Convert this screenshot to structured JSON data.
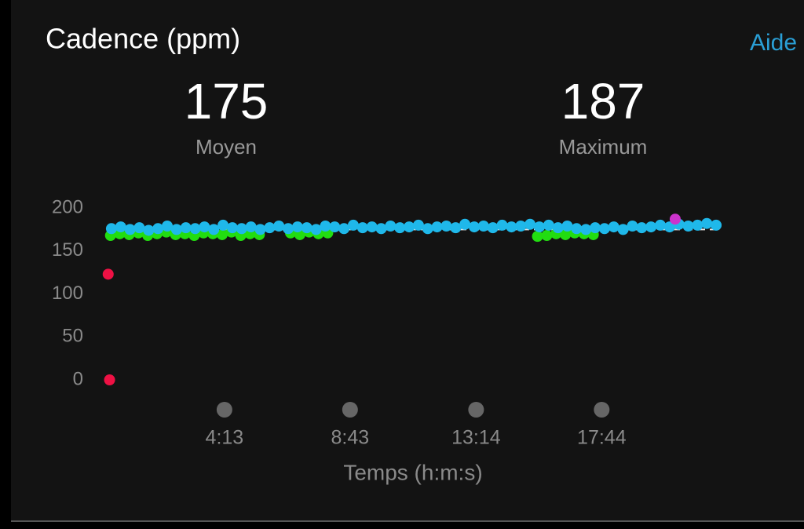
{
  "header": {
    "title": "Cadence (ppm)",
    "help": "Aide"
  },
  "stats": [
    {
      "value": 175,
      "label": "Moyen"
    },
    {
      "value": 187,
      "label": "Maximum"
    }
  ],
  "chart_data": {
    "type": "scatter",
    "x_label": "Temps (h:m:s)",
    "xlim": [
      0,
      1320
    ],
    "ylim": [
      0,
      200
    ],
    "xticks": [
      {
        "value": 253,
        "label": "4:13"
      },
      {
        "value": 523,
        "label": "8:43"
      },
      {
        "value": 794,
        "label": "13:14"
      },
      {
        "value": 1064,
        "label": "17:44"
      }
    ],
    "yticks": [
      0,
      50,
      100,
      150,
      200
    ],
    "series": [
      {
        "color": "#ee1144",
        "x": [
          3,
          6
        ],
        "values": [
          123,
          0
        ]
      },
      {
        "color": "#22dd11",
        "x": [
          8,
          28,
          48,
          68,
          88,
          108,
          128,
          148,
          168,
          188,
          208,
          228,
          248,
          268,
          288,
          308,
          328,
          395,
          415,
          435,
          455,
          475,
          926,
          946,
          966,
          986,
          1006,
          1026,
          1046
        ],
        "values": [
          168,
          170,
          169,
          171,
          168,
          170,
          172,
          169,
          170,
          168,
          171,
          170,
          169,
          172,
          168,
          170,
          169,
          171,
          169,
          172,
          170,
          171,
          167,
          168,
          170,
          169,
          171,
          170,
          169
        ]
      },
      {
        "color": "#1fb8ea",
        "x": [
          10,
          30,
          50,
          70,
          90,
          110,
          130,
          150,
          170,
          190,
          210,
          230,
          250,
          270,
          290,
          310,
          330,
          350,
          370,
          390,
          410,
          430,
          450,
          470,
          490,
          510,
          530,
          550,
          570,
          590,
          610,
          630,
          650,
          670,
          690,
          710,
          730,
          750,
          770,
          790,
          810,
          830,
          850,
          870,
          890,
          910,
          930,
          950,
          970,
          990,
          1010,
          1030,
          1050,
          1070,
          1090,
          1110,
          1130,
          1150,
          1170,
          1190,
          1210,
          1230,
          1250,
          1270,
          1290,
          1310
        ],
        "values": [
          176,
          178,
          175,
          177,
          174,
          176,
          179,
          175,
          177,
          176,
          178,
          175,
          180,
          177,
          176,
          178,
          175,
          177,
          179,
          176,
          178,
          177,
          175,
          179,
          178,
          176,
          180,
          177,
          178,
          176,
          179,
          177,
          178,
          180,
          176,
          178,
          179,
          177,
          181,
          178,
          179,
          177,
          180,
          178,
          179,
          181,
          178,
          180,
          177,
          179,
          176,
          175,
          177,
          176,
          178,
          175,
          179,
          177,
          178,
          180,
          178,
          181,
          179,
          180,
          182,
          180
        ]
      },
      {
        "color": "#cc33cc",
        "x": [
          1222
        ],
        "values": [
          187
        ]
      }
    ]
  }
}
